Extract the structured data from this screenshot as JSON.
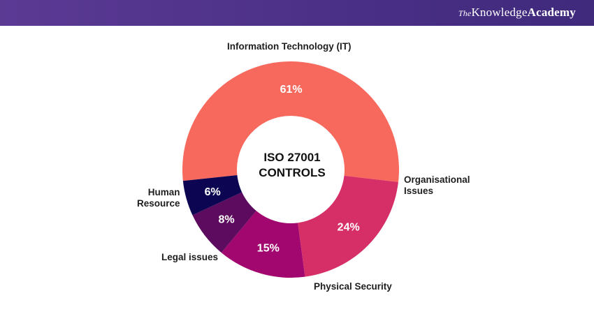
{
  "header": {
    "brand_prefix": "The",
    "brand_main": "Knowledge",
    "brand_suffix": "Academy"
  },
  "colors": {
    "header_bg": "#4a2f86",
    "it": "#f7685d",
    "organisational": "#d62e67",
    "physical": "#a1076e",
    "legal": "#5c0b5f",
    "human": "#0c0652",
    "slice_label": "#ffffff"
  },
  "chart_data": {
    "type": "pie",
    "variant": "donut",
    "center_title": "ISO 27001\nCONTROLS",
    "slices": [
      {
        "label": "Information Technology (IT)",
        "value": 61,
        "display": "61%",
        "color": "#f7685d"
      },
      {
        "label": "Organisational\nIssues",
        "value": 24,
        "display": "24%",
        "color": "#d62e67"
      },
      {
        "label": "Physical Security",
        "value": 15,
        "display": "15%",
        "color": "#a1076e"
      },
      {
        "label": "Legal issues",
        "value": 8,
        "display": "8%",
        "color": "#5c0b5f"
      },
      {
        "label": "Human\nResource",
        "value": 6,
        "display": "6%",
        "color": "#0c0652"
      }
    ]
  }
}
